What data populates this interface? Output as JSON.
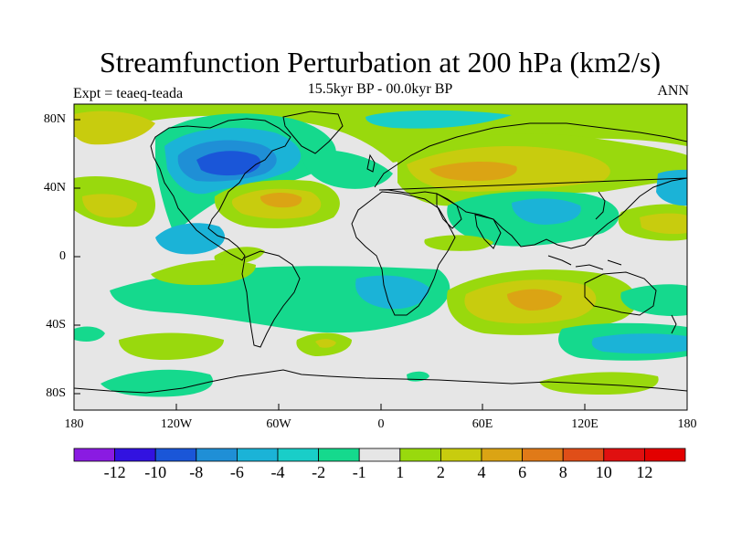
{
  "title": "Streamfunction Perturbation at 200 hPa (km2/s)",
  "subtitle": "15.5kyr BP - 00.0kyr BP",
  "left_label": "Expt = teaeq-teada",
  "right_label": "ANN",
  "lat_ticks": [
    "80N",
    "40N",
    "0",
    "40S",
    "80S"
  ],
  "lon_ticks": [
    "180",
    "120W",
    "60W",
    "0",
    "60E",
    "120E",
    "180"
  ],
  "colorbar": {
    "labels": [
      "-12",
      "-10",
      "-8",
      "-6",
      "-4",
      "-2",
      "-1",
      "1",
      "2",
      "4",
      "6",
      "8",
      "10",
      "12"
    ],
    "colors": [
      "#8a1be2",
      "#3212e0",
      "#1a56d8",
      "#1f8fd6",
      "#1bb3d7",
      "#19cec8",
      "#15d98d",
      "#e6e6e6",
      "#99d90d",
      "#c8cc0e",
      "#dba414",
      "#e07a18",
      "#e04e18",
      "#e01010",
      "#e30000"
    ]
  },
  "chart_data": {
    "type": "map-contour",
    "variable": "Streamfunction Perturbation at 200 hPa",
    "units": "km2/s",
    "period": "15.5kyr BP - 00.0kyr BP",
    "season": "ANN",
    "lon_range": [
      -180,
      180
    ],
    "lat_range": [
      -90,
      90
    ],
    "contour_levels": [
      -12,
      -10,
      -8,
      -6,
      -4,
      -2,
      -1,
      1,
      2,
      4,
      6,
      8,
      10,
      12
    ],
    "features": [
      {
        "region": "North America / Hudson Bay",
        "approx_value": -8
      },
      {
        "region": "Central Asia",
        "approx_value": 5
      },
      {
        "region": "Western Atlantic subtropics",
        "approx_value": 4
      },
      {
        "region": "South Indian Ocean",
        "approx_value": 5
      },
      {
        "region": "South Atlantic / Indian subtropics",
        "approx_value": -2
      }
    ]
  }
}
